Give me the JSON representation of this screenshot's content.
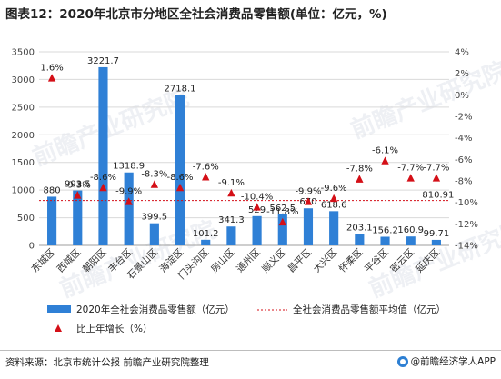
{
  "title": "图表12：2020年北京市分地区全社会消费品零售额(单位：亿元，%)",
  "source": "资料来源：北京市统计公报 前瞻产业研究院整理",
  "brand": "@前瞻经济学人APP",
  "watermark": "前瞻产业研究院",
  "colors": {
    "bar": "#2f80d6",
    "marker": "#d40f17",
    "avgline": "#d40f17",
    "grid": "#d9d9d9"
  },
  "legend": {
    "bar_label": "2020年全社会消费品零售额（亿元）",
    "avg_label": "全社会消费品零售额平均值（亿元）",
    "growth_label": "比上年增长（%）"
  },
  "chart_data": {
    "type": "bar",
    "categories": [
      "东城区",
      "西城区",
      "朝阳区",
      "丰台区",
      "石景山区",
      "海淀区",
      "门头沟区",
      "房山区",
      "通州区",
      "顺义区",
      "昌平区",
      "大兴区",
      "怀柔区",
      "平谷区",
      "密云区",
      "延庆区"
    ],
    "series": [
      {
        "name": "2020年全社会消费品零售额（亿元）",
        "type": "bar",
        "values": [
          880,
          993.5,
          3221.7,
          1318.9,
          399.5,
          2718.1,
          101.2,
          341.3,
          529,
          562.5,
          670,
          618.6,
          203.1,
          156.2,
          160.9,
          99.71
        ],
        "labels": [
          "880",
          "993.5",
          "3221.7",
          "1318.9",
          "399.5",
          "2718.1",
          "101.2",
          "341.3",
          "529",
          "562.5",
          "670",
          "618.6",
          "203.1",
          "156.2",
          "160.9",
          "99.71"
        ]
      },
      {
        "name": "比上年增长（%）",
        "type": "scatter",
        "axis": "right",
        "values": [
          1.6,
          -9.3,
          -8.6,
          -9.9,
          -8.3,
          -8.6,
          -7.6,
          -9.1,
          -10.4,
          -11.8,
          -9.9,
          -9.6,
          -7.8,
          -6.1,
          -7.7,
          -7.7
        ],
        "labels": [
          "1.6%",
          "-9.3%",
          "-8.6%",
          "-9.9%",
          "-8.3%",
          "-8.6%",
          "-7.6%",
          "-9.1%",
          "-10.4%",
          "-11.8%",
          "-9.9%",
          "-9.6%",
          "-7.8%",
          "-6.1%",
          "-7.7%",
          "-7.7%"
        ]
      },
      {
        "name": "全社会消费品零售额平均值（亿元）",
        "type": "line",
        "value": 810.91,
        "label": "810.91"
      }
    ],
    "ylim": [
      0,
      3500
    ],
    "yticks": [
      0,
      500,
      1000,
      1500,
      2000,
      2500,
      3000,
      3500
    ],
    "y2lim": [
      -14,
      4
    ],
    "y2ticks": [
      4,
      2,
      0,
      -2,
      -4,
      -6,
      -8,
      -10,
      -12,
      -14
    ],
    "y2tick_labels": [
      "4%",
      "2%",
      "0%",
      "-2%",
      "-4%",
      "-6%",
      "-8%",
      "-10%",
      "-12%",
      "-14%"
    ],
    "legend_position": "bottom"
  }
}
